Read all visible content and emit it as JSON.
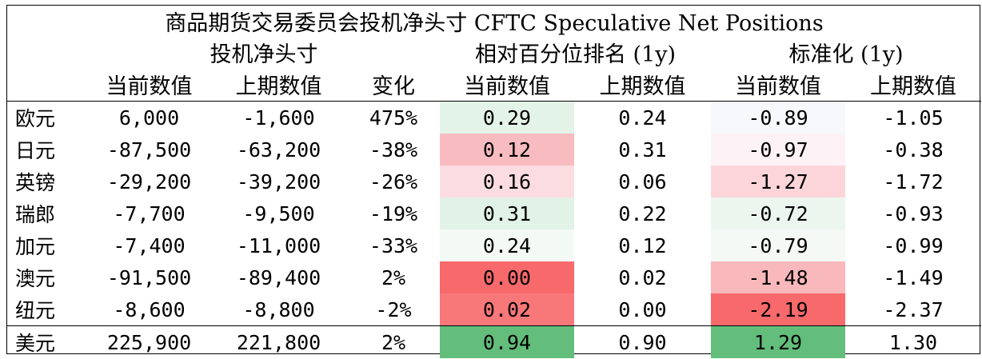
{
  "title": "商品期货交易委员会投机净头寸 CFTC Speculative Net Positions",
  "groups": {
    "net": "投机净头寸",
    "rank": "相对百分位排名 (1y)",
    "std": "标准化 (1y)"
  },
  "columns": [
    "当前数值",
    "上期数值",
    "变化",
    "当前数值",
    "上期数值",
    "当前数值",
    "上期数值"
  ],
  "colors": {
    "pos_strong": "#63be7b",
    "neg_strong": "#f8696b",
    "neutral": "#fcfcff"
  },
  "chart_data": {
    "type": "table",
    "title": "商品期货交易委员会投机净头寸 CFTC Speculative Net Positions",
    "rows": [
      {
        "name": "欧元",
        "cur": "6,000",
        "prev": "-1,600",
        "chg": "475%",
        "rank_cur": "0.29",
        "rank_prev": "0.24",
        "std_cur": "-0.89",
        "std_prev": "-1.05",
        "rank_bg": "#e4f3e8",
        "std_bg": "#f7f8fc"
      },
      {
        "name": "日元",
        "cur": "-87,500",
        "prev": "-63,200",
        "chg": "-38%",
        "rank_cur": "0.12",
        "rank_prev": "0.31",
        "std_cur": "-0.97",
        "std_prev": "-0.38",
        "rank_bg": "#f8bcc0",
        "std_bg": "#fdf2f5"
      },
      {
        "name": "英镑",
        "cur": "-29,200",
        "prev": "-39,200",
        "chg": "-26%",
        "rank_cur": "0.16",
        "rank_prev": "0.06",
        "std_cur": "-1.27",
        "std_prev": "-1.72",
        "rank_bg": "#fbdce1",
        "std_bg": "#fbd5da"
      },
      {
        "name": "瑞郎",
        "cur": "-7,700",
        "prev": "-9,500",
        "chg": "-19%",
        "rank_cur": "0.31",
        "rank_prev": "0.22",
        "std_cur": "-0.72",
        "std_prev": "-0.93",
        "rank_bg": "#e1f2e6",
        "std_bg": "#ecf6ef"
      },
      {
        "name": "加元",
        "cur": "-7,400",
        "prev": "-11,000",
        "chg": "-33%",
        "rank_cur": "0.24",
        "rank_prev": "0.12",
        "std_cur": "-0.79",
        "std_prev": "-0.99",
        "rank_bg": "#f3faf5",
        "std_bg": "#f4f9f6"
      },
      {
        "name": "澳元",
        "cur": "-91,500",
        "prev": "-89,400",
        "chg": "2%",
        "rank_cur": "0.00",
        "rank_prev": "0.02",
        "std_cur": "-1.48",
        "std_prev": "-1.49",
        "rank_bg": "#f8696b",
        "std_bg": "#f9b8bc"
      },
      {
        "name": "纽元",
        "cur": "-8,600",
        "prev": "-8,800",
        "chg": "-2%",
        "rank_cur": "0.02",
        "rank_prev": "0.00",
        "std_cur": "-2.19",
        "std_prev": "-2.37",
        "rank_bg": "#f87779",
        "std_bg": "#f8696b"
      },
      {
        "name": "美元",
        "cur": "225,900",
        "prev": "221,800",
        "chg": "2%",
        "rank_cur": "0.94",
        "rank_prev": "0.90",
        "std_cur": "1.29",
        "std_prev": "1.30",
        "rank_bg": "#63be7b",
        "std_bg": "#63be7b"
      }
    ]
  }
}
